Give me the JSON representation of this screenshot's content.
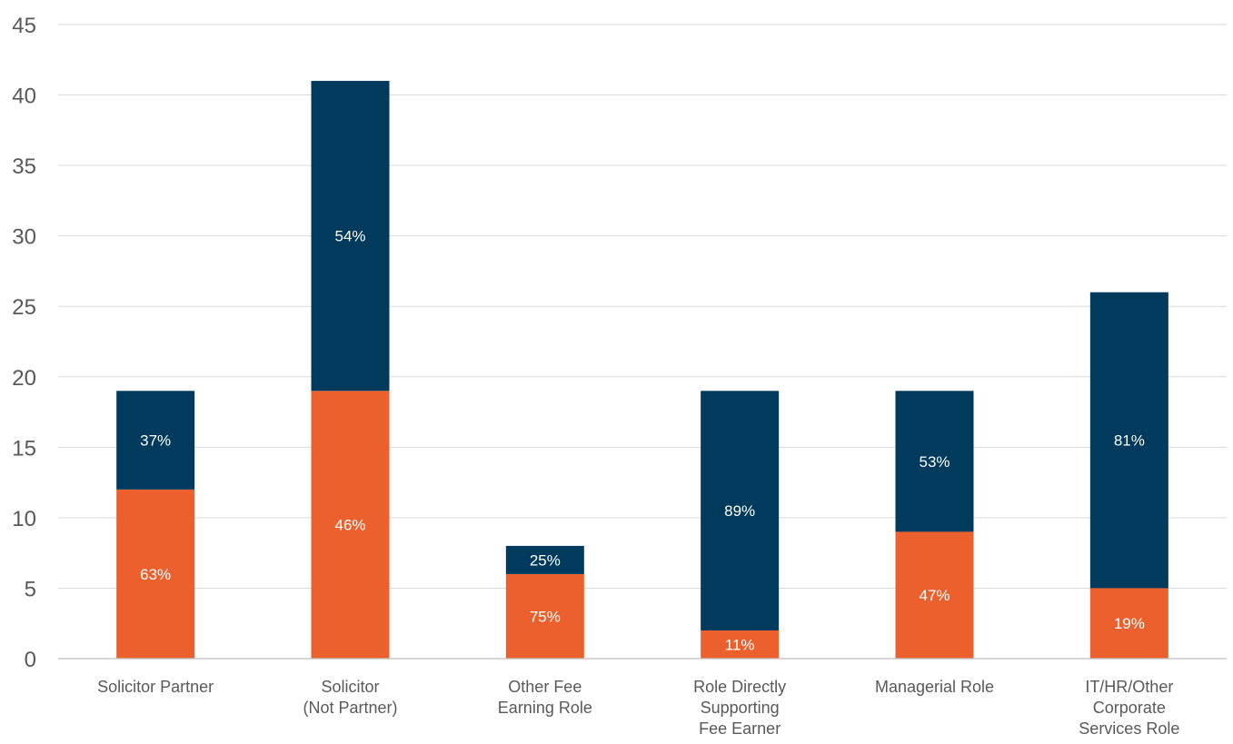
{
  "chart_data": {
    "type": "bar",
    "stacked": true,
    "title": "",
    "xlabel": "",
    "ylabel": "",
    "ylim": [
      0,
      45
    ],
    "yticks": [
      0,
      5,
      10,
      15,
      20,
      25,
      30,
      35,
      40,
      45
    ],
    "grid": true,
    "legend": "none",
    "categories": [
      [
        "Solicitor Partner"
      ],
      [
        "Solicitor",
        "(Not Partner)"
      ],
      [
        "Other Fee",
        "Earning Role"
      ],
      [
        "Role Directly",
        "Supporting",
        "Fee Earner"
      ],
      [
        "Managerial Role"
      ],
      [
        "IT/HR/Other",
        "Corporate",
        "Services Role"
      ]
    ],
    "series": [
      {
        "color": "#eb602c",
        "values": [
          12,
          19,
          6,
          2,
          9,
          5
        ],
        "labels": [
          "63%",
          "46%",
          "75%",
          "11%",
          "47%",
          "19%"
        ]
      },
      {
        "color": "#003a5d",
        "values": [
          7,
          22,
          2,
          17,
          10,
          21
        ],
        "labels": [
          "37%",
          "54%",
          "25%",
          "89%",
          "53%",
          "81%"
        ]
      }
    ]
  }
}
